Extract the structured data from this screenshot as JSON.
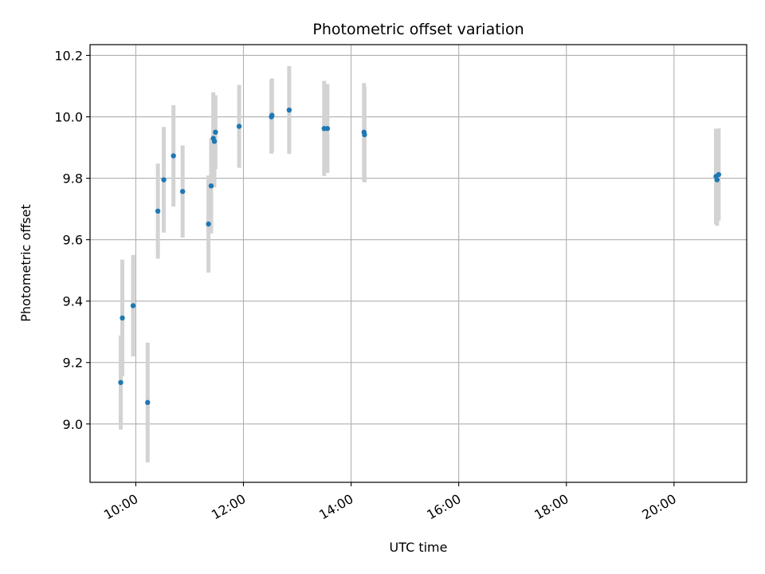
{
  "chart_data": {
    "type": "scatter",
    "title": "Photometric offset variation",
    "xlabel": "UTC time",
    "ylabel": "Photometric offset",
    "x_unit": "hours UTC",
    "xlim": [
      9.15,
      21.35
    ],
    "ylim": [
      8.81,
      10.235
    ],
    "x_ticks": [
      {
        "value": 10,
        "label": "10:00"
      },
      {
        "value": 12,
        "label": "12:00"
      },
      {
        "value": 14,
        "label": "14:00"
      },
      {
        "value": 16,
        "label": "16:00"
      },
      {
        "value": 18,
        "label": "18:00"
      },
      {
        "value": 20,
        "label": "20:00"
      }
    ],
    "y_ticks": [
      {
        "value": 9.0,
        "label": "9.0"
      },
      {
        "value": 9.2,
        "label": "9.2"
      },
      {
        "value": 9.4,
        "label": "9.4"
      },
      {
        "value": 9.6,
        "label": "9.6"
      },
      {
        "value": 9.8,
        "label": "9.8"
      },
      {
        "value": 10.0,
        "label": "10.0"
      },
      {
        "value": 10.2,
        "label": "10.2"
      }
    ],
    "grid": true,
    "marker_color": "#1f77b4",
    "errorbar_color": "#d3d3d3",
    "points": [
      {
        "x": 9.72,
        "y": 9.135,
        "err": 0.153
      },
      {
        "x": 9.75,
        "y": 9.345,
        "err": 0.19
      },
      {
        "x": 9.95,
        "y": 9.385,
        "err": 0.165
      },
      {
        "x": 10.22,
        "y": 9.07,
        "err": 0.195
      },
      {
        "x": 10.41,
        "y": 9.693,
        "err": 0.155
      },
      {
        "x": 10.52,
        "y": 9.795,
        "err": 0.172
      },
      {
        "x": 10.7,
        "y": 9.873,
        "err": 0.165
      },
      {
        "x": 10.87,
        "y": 9.757,
        "err": 0.15
      },
      {
        "x": 11.35,
        "y": 9.651,
        "err": 0.158
      },
      {
        "x": 11.4,
        "y": 9.775,
        "err": 0.155
      },
      {
        "x": 11.44,
        "y": 9.93,
        "err": 0.15
      },
      {
        "x": 11.46,
        "y": 9.92,
        "err": 0.15
      },
      {
        "x": 11.48,
        "y": 9.95,
        "err": 0.12
      },
      {
        "x": 11.92,
        "y": 9.969,
        "err": 0.135
      },
      {
        "x": 12.52,
        "y": 10.0,
        "err": 0.12
      },
      {
        "x": 12.53,
        "y": 10.005,
        "err": 0.12
      },
      {
        "x": 12.85,
        "y": 10.022,
        "err": 0.143
      },
      {
        "x": 13.5,
        "y": 9.962,
        "err": 0.155
      },
      {
        "x": 13.56,
        "y": 9.962,
        "err": 0.145
      },
      {
        "x": 14.24,
        "y": 9.95,
        "err": 0.16
      },
      {
        "x": 14.25,
        "y": 9.942,
        "err": 0.155
      },
      {
        "x": 20.78,
        "y": 9.806,
        "err": 0.155
      },
      {
        "x": 20.8,
        "y": 9.795,
        "err": 0.15
      },
      {
        "x": 20.83,
        "y": 9.812,
        "err": 0.15
      }
    ]
  }
}
